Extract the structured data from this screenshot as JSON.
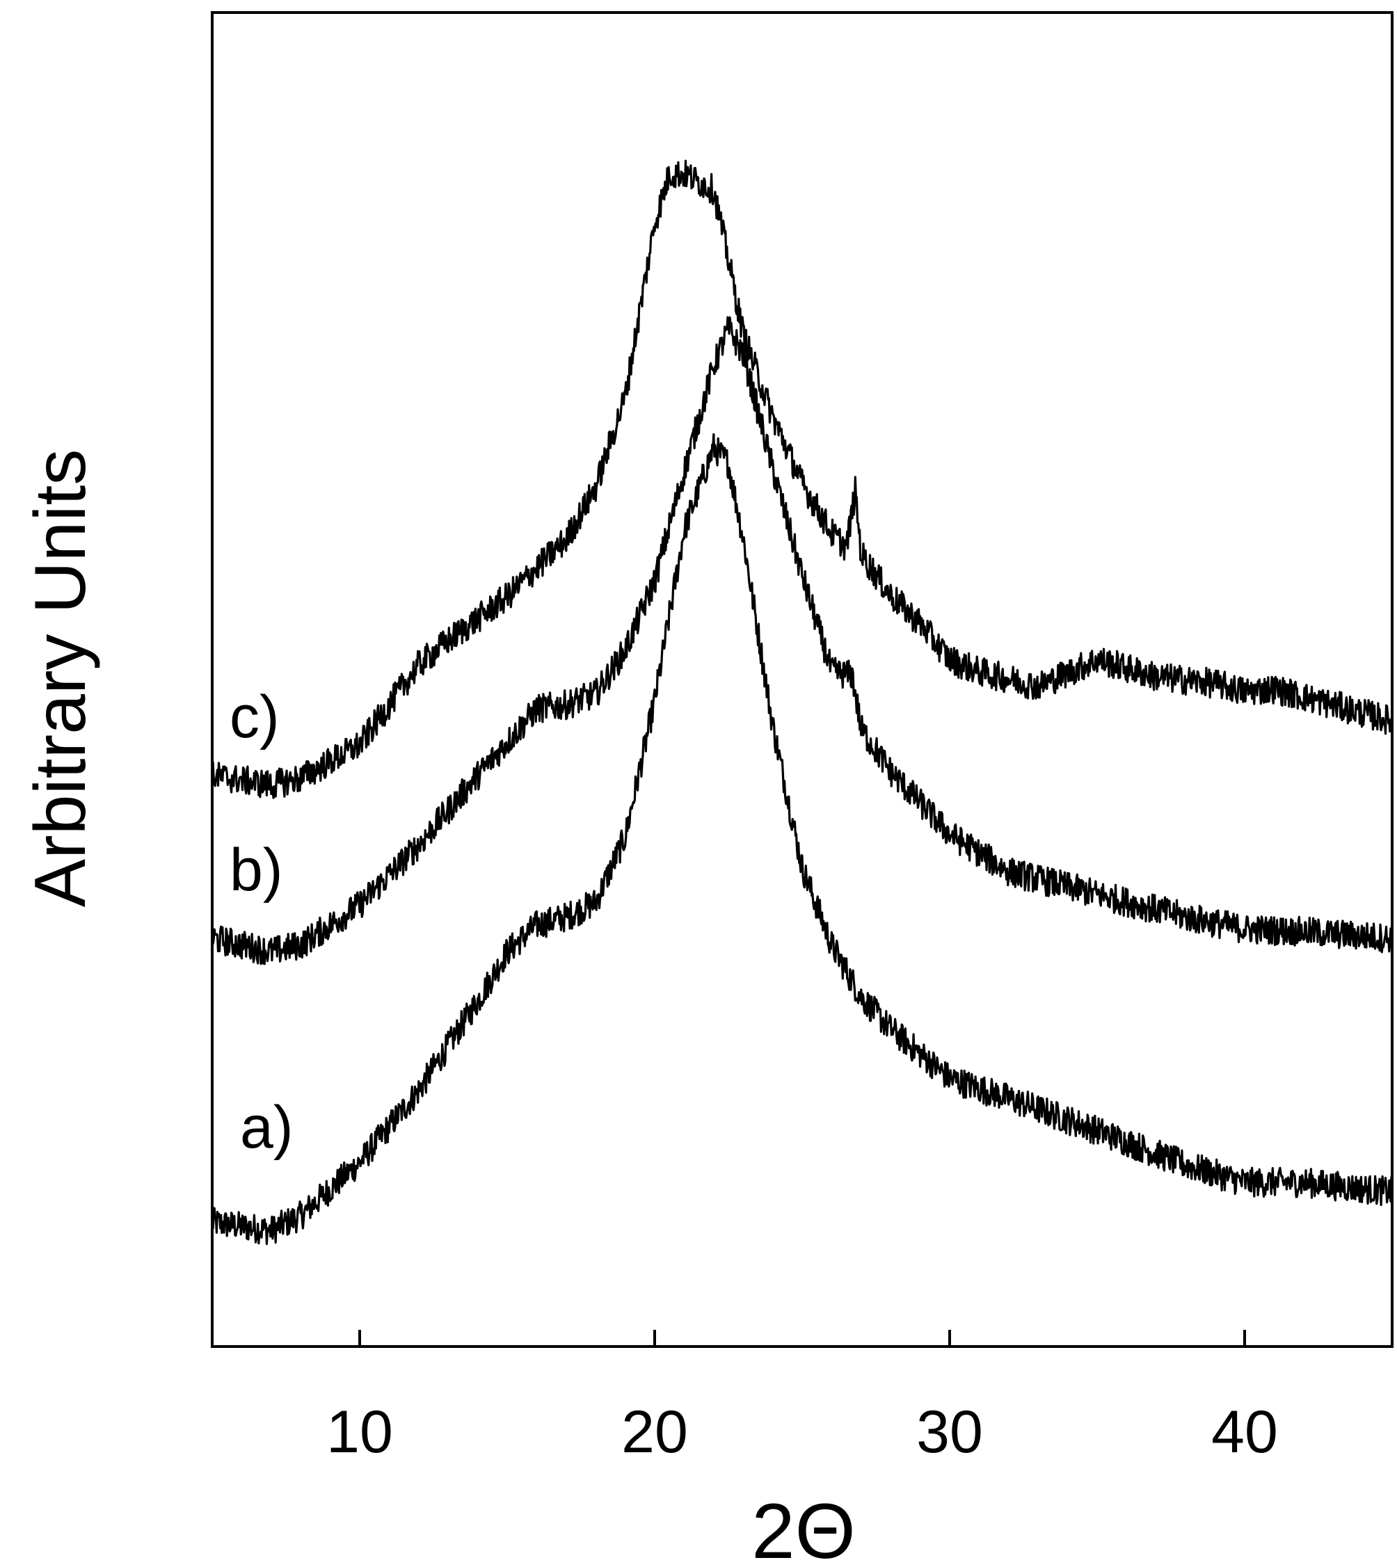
{
  "chart_data": {
    "type": "line",
    "title": "",
    "xlabel": "2Θ",
    "ylabel": "Arbitrary Units",
    "xlim": [
      5,
      45
    ],
    "ylim": [
      0,
      100
    ],
    "x_ticks": [
      10,
      20,
      30,
      40
    ],
    "x_tick_labels": [
      "10",
      "20",
      "30",
      "40"
    ],
    "y_ticks_shown": false,
    "grid": false,
    "legend": "none",
    "line_color": "#000000",
    "noisy": true,
    "series": [
      {
        "label": "a)",
        "x": [
          5,
          7,
          8,
          10,
          12,
          14,
          15,
          16,
          17,
          18,
          19,
          20,
          21,
          22,
          22.5,
          23,
          24,
          25,
          26,
          27,
          28,
          30,
          32,
          35,
          38,
          40,
          42,
          45
        ],
        "y": [
          9.3,
          8.7,
          9.8,
          13.8,
          19.2,
          25.9,
          29.6,
          31.6,
          32.2,
          33.3,
          38.2,
          48.4,
          61.2,
          67.4,
          66.2,
          60.6,
          46.6,
          35.9,
          30.1,
          26.2,
          23.8,
          20.1,
          18.6,
          16.2,
          13.6,
          12.3,
          12.3,
          11.6
        ]
      },
      {
        "label": "b)",
        "x": [
          5,
          7,
          8,
          10,
          12,
          14,
          16,
          17,
          18,
          19,
          20,
          21,
          22,
          22.5,
          23,
          24,
          25,
          26,
          26.7,
          27,
          28,
          30,
          32,
          35,
          38,
          40,
          42,
          45
        ],
        "y": [
          30.6,
          29.6,
          30.1,
          33.1,
          37.6,
          42.8,
          47.8,
          48.1,
          48.9,
          52.2,
          57.4,
          65.6,
          73.5,
          76.3,
          74.4,
          65.8,
          57.8,
          50.6,
          50.3,
          46.3,
          43.1,
          38.4,
          35.6,
          33.9,
          32.2,
          31.3,
          31.1,
          30.6
        ]
      },
      {
        "label": "c)",
        "x": [
          5,
          7,
          8,
          10,
          12,
          13,
          15,
          17,
          18,
          19,
          20,
          20.5,
          21,
          22,
          22.5,
          23,
          24,
          25,
          26,
          26.5,
          26.8,
          27,
          28,
          29,
          30,
          31,
          33,
          35,
          37,
          39,
          40,
          41,
          43,
          45
        ],
        "y": [
          42.8,
          42.1,
          42.6,
          45.1,
          51.1,
          52.9,
          56.2,
          60.5,
          64.4,
          71.2,
          84.2,
          87.9,
          87.9,
          86.7,
          81.5,
          75.9,
          69.7,
          64.7,
          61.0,
          59.9,
          64.1,
          59.4,
          56.3,
          54.2,
          51.5,
          50.6,
          49.5,
          51.5,
          50.2,
          49.7,
          49.1,
          49.3,
          48.1,
          46.9
        ]
      }
    ]
  }
}
